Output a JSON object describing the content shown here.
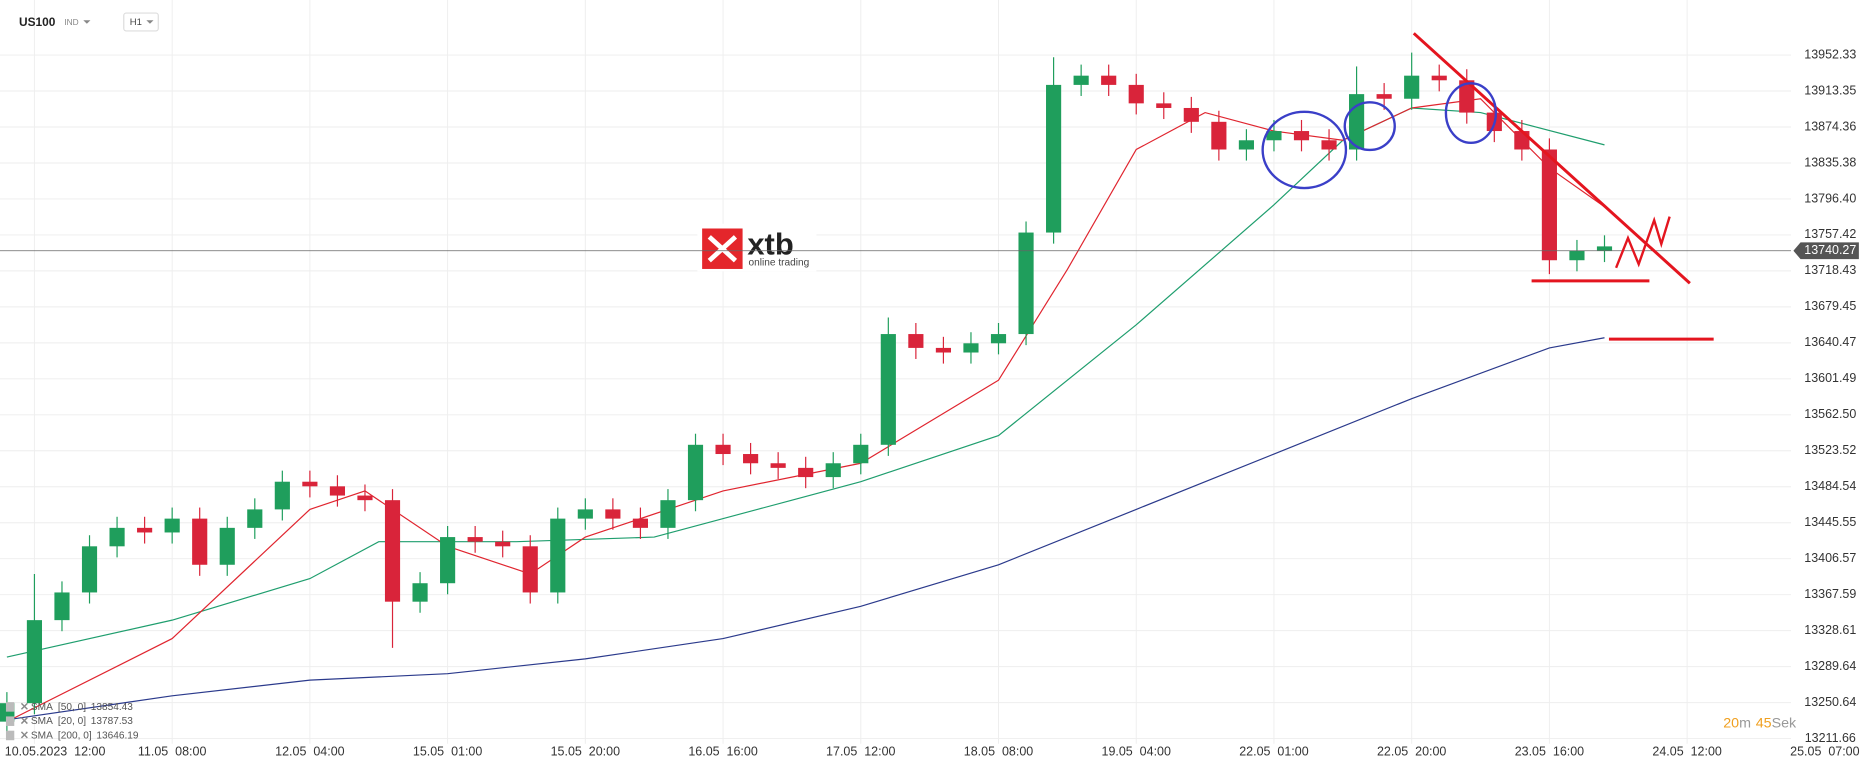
{
  "header": {
    "symbol": "US100",
    "market": "IND",
    "timeframe": "H1"
  },
  "watermark": {
    "name": "xtb",
    "tagline": "online trading"
  },
  "countdown": {
    "minutes": 20,
    "minutes_unit": "m",
    "seconds": 45,
    "seconds_unit": "Sek"
  },
  "chart_data": {
    "type": "candlestick",
    "up_color": "#1f9e5c",
    "down_color": "#d9243a",
    "xlim": [
      -5,
      262
    ],
    "ylim": [
      13206,
      14012
    ],
    "grid": true,
    "current_price": 13740.27,
    "xticks": [
      {
        "value": 0,
        "label": "10.05.2023  12:00"
      },
      {
        "value": 20,
        "label": "11.05  08:00"
      },
      {
        "value": 40,
        "label": "12.05  04:00"
      },
      {
        "value": 60,
        "label": "15.05  01:00"
      },
      {
        "value": 80,
        "label": "15.05  20:00"
      },
      {
        "value": 100,
        "label": "16.05  16:00"
      },
      {
        "value": 120,
        "label": "17.05  12:00"
      },
      {
        "value": 140,
        "label": "18.05  08:00"
      },
      {
        "value": 160,
        "label": "19.05  04:00"
      },
      {
        "value": 180,
        "label": "22.05  01:00"
      },
      {
        "value": 200,
        "label": "22.05  20:00"
      },
      {
        "value": 220,
        "label": "23.05  16:00"
      },
      {
        "value": 240,
        "label": "24.05  12:00"
      },
      {
        "value": 260,
        "label": "25.05  07:00"
      }
    ],
    "yticks": [
      13952.33,
      13913.35,
      13874.36,
      13835.38,
      {
        "value": 13796.4,
        "label": "13796.40"
      },
      13757.42,
      13718.43,
      13679.45,
      13640.47,
      13601.49,
      {
        "value": 13562.5,
        "label": "13562.50"
      },
      13523.52,
      13484.54,
      13445.55,
      13406.57,
      13367.59,
      13328.61,
      13289.64,
      13250.64,
      13211.66
    ],
    "x": [
      -4,
      0,
      4,
      8,
      12,
      16,
      20,
      24,
      28,
      32,
      36,
      40,
      44,
      48,
      52,
      56,
      60,
      64,
      68,
      72,
      76,
      80,
      84,
      88,
      92,
      96,
      100,
      104,
      108,
      112,
      116,
      120,
      124,
      128,
      132,
      136,
      140,
      144,
      148,
      152,
      156,
      160,
      164,
      168,
      172,
      176,
      180,
      184,
      188,
      192,
      196,
      200,
      204,
      208,
      212,
      216,
      220,
      224,
      228
    ],
    "open": [
      13230,
      13250,
      13340,
      13370,
      13420,
      13440,
      13435,
      13450,
      13400,
      13440,
      13460,
      13490,
      13485,
      13475,
      13470,
      13360,
      13380,
      13430,
      13425,
      13420,
      13370,
      13450,
      13460,
      13450,
      13440,
      13470,
      13530,
      13520,
      13510,
      13505,
      13495,
      13510,
      13530,
      13650,
      13635,
      13630,
      13640,
      13650,
      13760,
      13920,
      13930,
      13920,
      13900,
      13895,
      13880,
      13850,
      13860,
      13870,
      13860,
      13850,
      13910,
      13905,
      13930,
      13925,
      13890,
      13870,
      13850,
      13730,
      13740
    ],
    "high": [
      13262,
      13390,
      13382,
      13432,
      13452,
      13452,
      13462,
      13462,
      13452,
      13472,
      13502,
      13502,
      13497,
      13487,
      13482,
      13392,
      13442,
      13442,
      13437,
      13432,
      13462,
      13472,
      13472,
      13462,
      13482,
      13542,
      13542,
      13532,
      13522,
      13517,
      13522,
      13542,
      13668,
      13662,
      13647,
      13652,
      13662,
      13772,
      13950,
      13942,
      13942,
      13932,
      13912,
      13907,
      13892,
      13872,
      13882,
      13882,
      13872,
      13940,
      13922,
      13955,
      13942,
      13937,
      13902,
      13882,
      13862,
      13752,
      13757
    ],
    "low": [
      13215,
      13238,
      13328,
      13358,
      13408,
      13423,
      13423,
      13388,
      13388,
      13428,
      13448,
      13473,
      13463,
      13458,
      13310,
      13348,
      13368,
      13413,
      13408,
      13358,
      13358,
      13438,
      13438,
      13428,
      13428,
      13458,
      13508,
      13498,
      13493,
      13483,
      13483,
      13498,
      13518,
      13623,
      13618,
      13618,
      13628,
      13638,
      13748,
      13908,
      13908,
      13888,
      13883,
      13868,
      13838,
      13838,
      13848,
      13848,
      13838,
      13838,
      13893,
      13893,
      13913,
      13878,
      13858,
      13838,
      13715,
      13718,
      13728
    ],
    "close": [
      13250,
      13340,
      13370,
      13420,
      13440,
      13435,
      13450,
      13400,
      13440,
      13460,
      13490,
      13485,
      13475,
      13470,
      13360,
      13380,
      13430,
      13425,
      13420,
      13370,
      13450,
      13460,
      13450,
      13440,
      13470,
      13530,
      13520,
      13510,
      13505,
      13495,
      13510,
      13530,
      13650,
      13635,
      13630,
      13640,
      13650,
      13760,
      13920,
      13930,
      13920,
      13900,
      13895,
      13880,
      13850,
      13860,
      13870,
      13860,
      13850,
      13910,
      13905,
      13930,
      13925,
      13890,
      13870,
      13850,
      13730,
      13740,
      13745
    ],
    "indicators": [
      {
        "name": "SMA  [50, 0]",
        "last": 13854.43,
        "color": "#1f9e6e",
        "x": [
          -4,
          20,
          40,
          50,
          70,
          90,
          110,
          120,
          140,
          160,
          180,
          190,
          200,
          210,
          228
        ],
        "values": [
          13300,
          13340,
          13385,
          13425,
          13425,
          13430,
          13470,
          13490,
          13540,
          13660,
          13790,
          13860,
          13895,
          13890,
          13855
        ]
      },
      {
        "name": "SMA  [20, 0]",
        "last": 13787.53,
        "color": "#e0252f",
        "x": [
          -4,
          20,
          40,
          48,
          60,
          72,
          80,
          100,
          120,
          140,
          150,
          160,
          170,
          180,
          190,
          200,
          210,
          220,
          228
        ],
        "values": [
          13230,
          13320,
          13460,
          13480,
          13420,
          13390,
          13430,
          13480,
          13510,
          13600,
          13720,
          13850,
          13890,
          13870,
          13860,
          13895,
          13905,
          13830,
          13788
        ]
      },
      {
        "name": "SMA  [200, 0]",
        "last": 13646.19,
        "color": "#2b3a8c",
        "x": [
          -4,
          20,
          40,
          60,
          80,
          100,
          120,
          140,
          160,
          180,
          200,
          220,
          228
        ],
        "values": [
          13232,
          13258,
          13275,
          13282,
          13298,
          13320,
          13355,
          13400,
          13460,
          13520,
          13580,
          13635,
          13646
        ]
      }
    ]
  }
}
